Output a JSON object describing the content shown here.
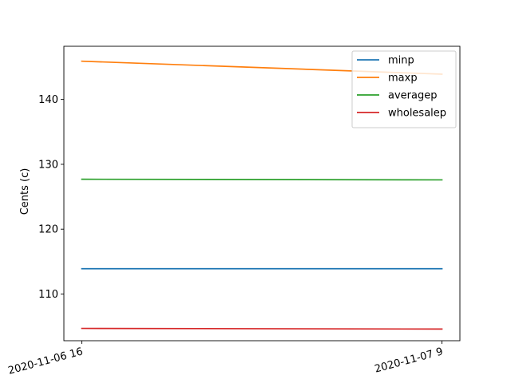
{
  "chart_data": {
    "type": "line",
    "title": "",
    "xlabel": "",
    "ylabel": "Cents (c)",
    "x": [
      "2020-11-06 16",
      "2020-11-07 9"
    ],
    "ylim": [
      102.8,
      148.2
    ],
    "yticks": [
      110,
      120,
      130,
      140
    ],
    "grid": false,
    "legend_position": "top-right",
    "series": [
      {
        "name": "minp",
        "color": "#1f77b4",
        "values": [
          113.9,
          113.9
        ]
      },
      {
        "name": "maxp",
        "color": "#ff7f0e",
        "values": [
          145.9,
          143.9
        ]
      },
      {
        "name": "averagep",
        "color": "#2ca02c",
        "values": [
          127.7,
          127.6
        ]
      },
      {
        "name": "wholesalep",
        "color": "#d62728",
        "values": [
          104.7,
          104.6
        ]
      }
    ]
  }
}
